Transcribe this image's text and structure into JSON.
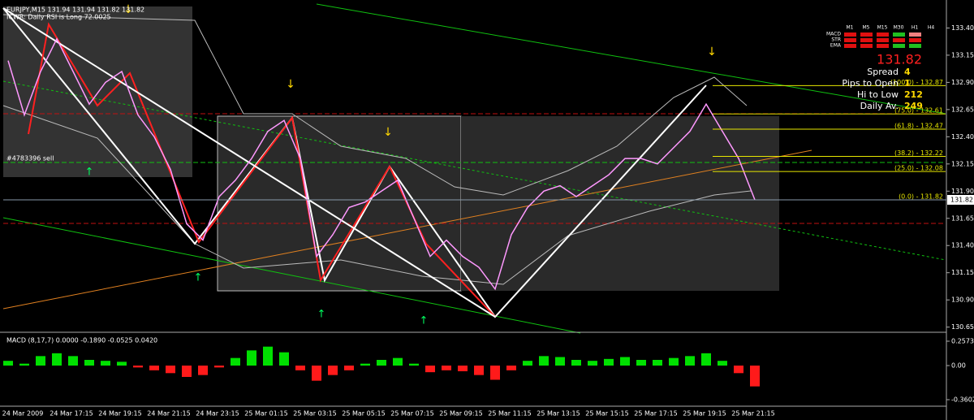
{
  "chart_data": [
    {
      "type": "line",
      "title": "EURJPY,M15  131.94 131.94 131.82 131.82",
      "subtitle": "ICWR: Daily RSI is Long 72.0025",
      "annotations": [
        "#4783396 sell"
      ],
      "color": "#ff99ff",
      "categories": [
        null,
        "24 Mar 2009",
        null,
        null,
        "24 Mar 17:15",
        null,
        null,
        "24 Mar 19:15",
        null,
        null,
        "24 Mar 21:15",
        null,
        null,
        "24 Mar 23:15",
        null,
        null,
        "25 Mar 01:15",
        null,
        null,
        "25 Mar 03:15",
        null,
        null,
        "25 Mar 05:15",
        null,
        null,
        "25 Mar 07:15",
        null,
        null,
        "25 Mar 09:15",
        null,
        null,
        "25 Mar 11:15",
        null,
        null,
        "25 Mar 13:15",
        null,
        null,
        "25 Mar 15:15",
        null,
        null,
        "25 Mar 17:15",
        null,
        null,
        "25 Mar 19:15",
        null,
        null,
        "25 Mar 21:15"
      ],
      "values": [
        133.1,
        132.6,
        133.0,
        133.3,
        133.0,
        132.7,
        132.9,
        133.0,
        132.6,
        132.4,
        132.1,
        131.6,
        131.45,
        131.85,
        132.0,
        132.2,
        132.45,
        132.55,
        132.2,
        131.3,
        131.5,
        131.75,
        131.8,
        131.9,
        132.0,
        131.65,
        131.3,
        131.45,
        131.3,
        131.2,
        131.0,
        131.5,
        131.75,
        131.9,
        131.95,
        131.85,
        131.95,
        132.05,
        132.2,
        132.2,
        132.15,
        132.3,
        132.45,
        132.7,
        132.45,
        132.2,
        131.82
      ],
      "ylim": [
        130.61,
        133.62
      ],
      "yticks": [
        {
          "value": 133.4,
          "label": "133.40"
        },
        133.15,
        {
          "value": 132.9,
          "label": "132.90"
        },
        132.65,
        {
          "value": 132.4,
          "label": "132.40"
        },
        132.15,
        {
          "value": 131.9,
          "label": "131.90"
        },
        131.65,
        {
          "value": 131.4,
          "label": "131.40"
        },
        131.15,
        {
          "value": 130.9,
          "label": "130.90"
        },
        130.65
      ],
      "last_price": 131.82,
      "fib_color": "#e6e600",
      "fib_levels": [
        {
          "value": 132.87,
          "label": "(100.0) - 132.87"
        },
        {
          "value": 132.61,
          "label": "(75.0) - 132.61"
        },
        {
          "value": 132.47,
          "label": "(61.8) - 132.47"
        },
        {
          "value": 132.22,
          "label": "(38.2) - 132.22"
        },
        {
          "value": 132.08,
          "label": "(25.0) - 132.08"
        },
        {
          "value": 131.82,
          "label": "(0.0) - 131.82"
        }
      ]
    },
    {
      "type": "bar",
      "title": "MACD (8,17,7) 0.0000 -0.1890 -0.0525 0.0420",
      "up_color": "#00e000",
      "down_color": "#ff1a1a",
      "values": [
        0.05,
        0.02,
        0.1,
        0.13,
        0.1,
        0.06,
        0.05,
        0.04,
        -0.02,
        -0.05,
        -0.08,
        -0.12,
        -0.1,
        -0.02,
        0.08,
        0.16,
        0.2,
        0.14,
        -0.05,
        -0.16,
        -0.1,
        -0.05,
        0.02,
        0.06,
        0.08,
        0.02,
        -0.07,
        -0.05,
        -0.06,
        -0.1,
        -0.15,
        -0.05,
        0.05,
        0.1,
        0.09,
        0.06,
        0.05,
        0.07,
        0.09,
        0.06,
        0.06,
        0.08,
        0.1,
        0.13,
        0.05,
        -0.08,
        -0.22
      ],
      "ylim": [
        -0.429,
        0.326
      ],
      "yticks": [
        0.2573,
        {
          "value": 0,
          "label": "0.00"
        },
        -0.3602
      ]
    }
  ],
  "panel": {
    "timeframes": [
      "M1",
      "M5",
      "M15",
      "M30",
      "H1",
      "H4"
    ],
    "rows": [
      "MACD",
      "STR",
      "EMA"
    ],
    "stats": [
      {
        "label": "Spread",
        "value": 4
      },
      {
        "label": "Pips to Open",
        "value": 1
      },
      {
        "label": "Hi to Low",
        "value": 212
      },
      {
        "label": "Daily Av.",
        "value": 249
      }
    ]
  }
}
